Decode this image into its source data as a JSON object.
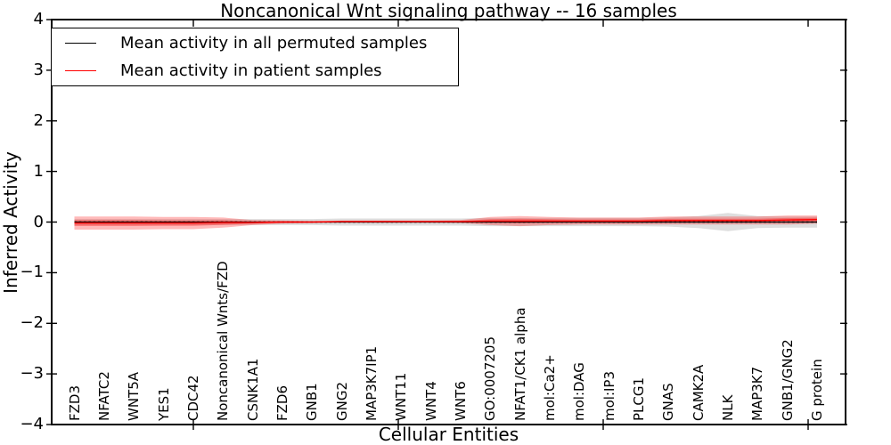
{
  "chart_data": {
    "type": "line",
    "title": "Noncanonical Wnt signaling pathway -- 16 samples",
    "xlabel": "Cellular Entities",
    "ylabel": "Inferred Activity",
    "ylim": [
      -4,
      4
    ],
    "yticks": [
      4,
      3,
      2,
      1,
      0,
      -1,
      -2,
      -3,
      -4
    ],
    "ytick_labels": [
      "4",
      "3",
      "2",
      "1",
      "0",
      "−1",
      "−2",
      "−3",
      "−4"
    ],
    "grid": false,
    "legend_position": "upper left",
    "zero_line_style": "dotted",
    "categories": [
      "FZD3",
      "NFATC2",
      "WNT5A",
      "YES1",
      "CDC42",
      "Noncanonical Wnts/FZD",
      "CSNK1A1",
      "FZD6",
      "GNB1",
      "GNG2",
      "MAP3K7IP1",
      "WNT11",
      "WNT4",
      "WNT6",
      "GO:0007205",
      "NFAT1/CK1 alpha",
      "mol:Ca2+",
      "mol:DAG",
      "mol:IP3",
      "PLCG1",
      "GNAS",
      "CAMK2A",
      "NLK",
      "MAP3K7",
      "GNB1/GNG2",
      "G protein"
    ],
    "series": [
      {
        "name": "Mean activity in all permuted samples",
        "color": "#000000",
        "band_color": "rgba(0,0,0,0.13)",
        "values": [
          0,
          0,
          0,
          0,
          0,
          0,
          0,
          0,
          0,
          0,
          0,
          0,
          0,
          0,
          0,
          0,
          0,
          0,
          0,
          0,
          0,
          0,
          0,
          0,
          0,
          0
        ],
        "band": [
          0.06,
          0.06,
          0.06,
          0.06,
          0.06,
          0.06,
          0.06,
          0.06,
          0.06,
          0.07,
          0.07,
          0.07,
          0.07,
          0.07,
          0.08,
          0.08,
          0.08,
          0.08,
          0.08,
          0.08,
          0.09,
          0.12,
          0.18,
          0.12,
          0.11,
          0.11
        ]
      },
      {
        "name": "Mean activity in patient samples",
        "color": "#ff0000",
        "band_color": "rgba(255,0,0,0.27)",
        "values": [
          -0.02,
          -0.02,
          -0.02,
          -0.02,
          -0.02,
          -0.01,
          -0.01,
          0,
          0,
          0.01,
          0.01,
          0.01,
          0.01,
          0.01,
          0.02,
          0.02,
          0.02,
          0.02,
          0.02,
          0.02,
          0.03,
          0.03,
          0.03,
          0.03,
          0.04,
          0.05
        ],
        "band": [
          0.13,
          0.13,
          0.13,
          0.12,
          0.12,
          0.1,
          0.05,
          0.03,
          0.02,
          0.02,
          0.02,
          0.02,
          0.02,
          0.03,
          0.08,
          0.1,
          0.08,
          0.07,
          0.07,
          0.07,
          0.08,
          0.08,
          0.08,
          0.08,
          0.09,
          0.08
        ]
      }
    ]
  }
}
